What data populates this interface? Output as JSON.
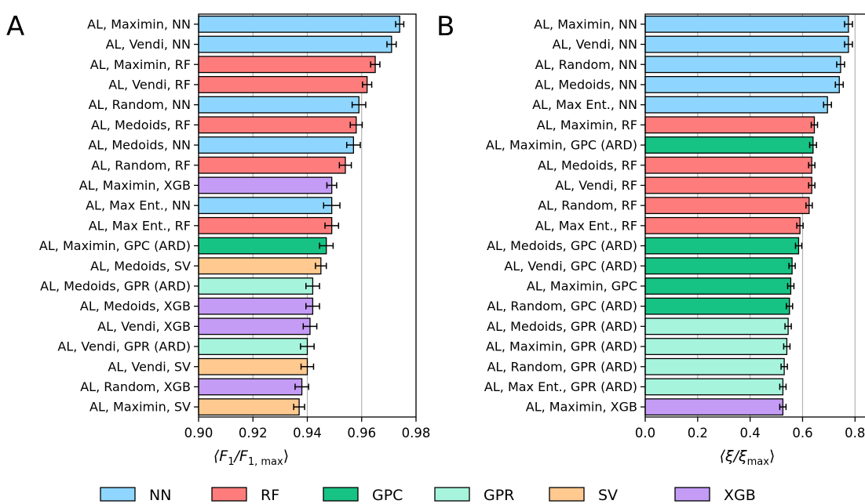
{
  "colors": {
    "NN": "#8ed6ff",
    "RF": "#ff7c7c",
    "GPC": "#17c384",
    "GPR": "#a6f4dc",
    "SV": "#ffc98f",
    "XGB": "#c49cf6"
  },
  "legend": [
    "NN",
    "RF",
    "GPC",
    "GPR",
    "SV",
    "XGB"
  ],
  "chart_data": [
    {
      "type": "bar",
      "orientation": "horizontal",
      "panel": "A",
      "xlabel_pre": "⟨F",
      "xlabel_sub1": "1",
      "xlabel_mid": "/F",
      "xlabel_sub2": "1, max",
      "xlabel_post": "⟩",
      "xlim": [
        0.9,
        0.98
      ],
      "xticks": [
        "0.90",
        "0.92",
        "0.94",
        "0.96",
        "0.98"
      ],
      "xtick_values": [
        0.9,
        0.92,
        0.94,
        0.96,
        0.98
      ],
      "grid": "vertical",
      "categories": [
        "AL, Maximin, NN",
        "AL, Vendi, NN",
        "AL, Maximin, RF",
        "AL, Vendi, RF",
        "AL, Random, NN",
        "AL, Medoids, RF",
        "AL, Medoids, NN",
        "AL, Random, RF",
        "AL, Maximin, XGB",
        "AL, Max Ent., NN",
        "AL, Max Ent., RF",
        "AL, Maximin, GPC (ARD)",
        "AL, Medoids, SV",
        "AL, Medoids, GPR (ARD)",
        "AL, Medoids, XGB",
        "AL, Vendi, XGB",
        "AL, Vendi, GPR (ARD)",
        "AL, Vendi, SV",
        "AL, Random, XGB",
        "AL, Maximin, SV"
      ],
      "models": [
        "NN",
        "NN",
        "RF",
        "RF",
        "NN",
        "RF",
        "NN",
        "RF",
        "XGB",
        "NN",
        "RF",
        "GPC",
        "SV",
        "GPR",
        "XGB",
        "XGB",
        "GPR",
        "SV",
        "XGB",
        "SV"
      ],
      "values": [
        0.974,
        0.971,
        0.965,
        0.962,
        0.959,
        0.958,
        0.957,
        0.954,
        0.949,
        0.949,
        0.949,
        0.947,
        0.945,
        0.942,
        0.942,
        0.941,
        0.94,
        0.94,
        0.938,
        0.937
      ],
      "errors": [
        0.0015,
        0.0017,
        0.0017,
        0.0017,
        0.0025,
        0.0022,
        0.0025,
        0.0022,
        0.0018,
        0.003,
        0.0025,
        0.0025,
        0.002,
        0.0025,
        0.0025,
        0.0025,
        0.0025,
        0.0023,
        0.0025,
        0.002
      ]
    },
    {
      "type": "bar",
      "orientation": "horizontal",
      "panel": "B",
      "xlabel_pre": "⟨ξ/ξ",
      "xlabel_sub2": "max",
      "xlabel_post": "⟩",
      "xlim": [
        0.0,
        0.85
      ],
      "xticks": [
        "0.0",
        "0.2",
        "0.4",
        "0.6",
        "0.8"
      ],
      "xtick_values": [
        0.0,
        0.2,
        0.4,
        0.6,
        0.8
      ],
      "grid": "vertical",
      "categories": [
        "AL, Maximin, NN",
        "AL, Vendi, NN",
        "AL, Random, NN",
        "AL, Medoids, NN",
        "AL, Max Ent., NN",
        "AL, Maximin, RF",
        "AL, Maximin, GPC (ARD)",
        "AL, Medoids, RF",
        "AL, Vendi, RF",
        "AL, Random, RF",
        "AL, Max Ent., RF",
        "AL, Medoids, GPC (ARD)",
        "AL, Vendi, GPC (ARD)",
        "AL, Maximin, GPC",
        "AL, Random, GPC (ARD)",
        "AL, Medoids, GPR (ARD)",
        "AL, Maximin, GPR (ARD)",
        "AL, Random, GPR (ARD)",
        "AL, Max Ent., GPR (ARD)",
        "AL, Maximin, XGB"
      ],
      "models": [
        "NN",
        "NN",
        "NN",
        "NN",
        "NN",
        "RF",
        "GPC",
        "RF",
        "RF",
        "RF",
        "RF",
        "GPC",
        "GPC",
        "GPC",
        "GPC",
        "GPR",
        "GPR",
        "GPR",
        "GPR",
        "XGB"
      ],
      "values": [
        0.775,
        0.775,
        0.745,
        0.74,
        0.695,
        0.645,
        0.64,
        0.635,
        0.635,
        0.625,
        0.59,
        0.585,
        0.56,
        0.555,
        0.55,
        0.545,
        0.54,
        0.53,
        0.525,
        0.525
      ],
      "errors": [
        0.015,
        0.015,
        0.015,
        0.015,
        0.015,
        0.012,
        0.013,
        0.012,
        0.012,
        0.012,
        0.012,
        0.012,
        0.012,
        0.012,
        0.012,
        0.012,
        0.012,
        0.012,
        0.012,
        0.012
      ]
    }
  ]
}
